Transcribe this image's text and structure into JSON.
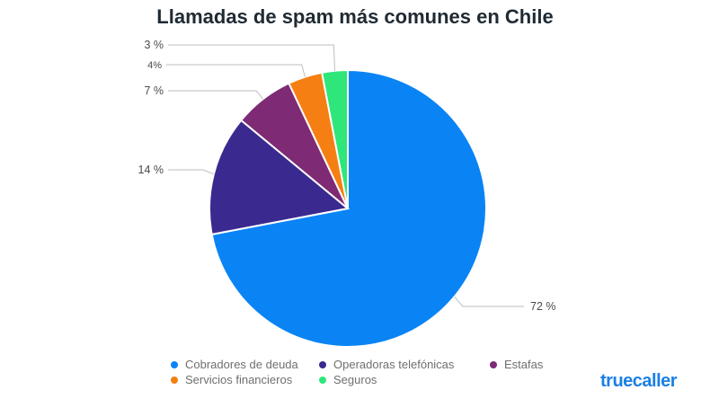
{
  "chart_data": {
    "type": "pie",
    "title": "Llamadas de spam más comunes en Chile",
    "categories": [
      "Cobradores de deuda",
      "Operadoras telefónicas",
      "Estafas",
      "Servicios financieros",
      "Seguros"
    ],
    "values": [
      72,
      14,
      7,
      4,
      3
    ],
    "labels": [
      "72 %",
      "14 %",
      "7 %",
      "4%",
      "3 %"
    ],
    "colors": [
      "#0a84f5",
      "#3a2a8f",
      "#7e2a74",
      "#f57f12",
      "#2ee67a"
    ],
    "legend": "bottom"
  },
  "brand": "truecaller"
}
